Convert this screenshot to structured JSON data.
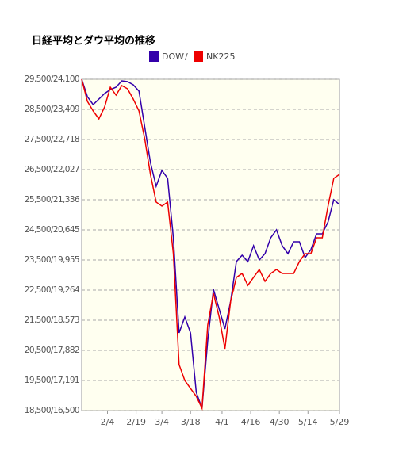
{
  "chart_data": {
    "type": "line",
    "title": "日経平均とダウ平均の推移",
    "legend_separator": "/",
    "x": [
      0,
      2,
      4,
      6,
      8,
      10,
      12,
      14,
      16,
      18,
      20,
      22,
      24,
      26,
      28,
      30,
      32,
      34,
      36,
      38,
      40,
      42,
      44,
      46,
      48,
      50,
      52,
      54,
      56,
      58,
      60,
      62,
      64,
      66,
      68,
      70,
      72,
      74,
      76,
      78,
      80,
      82,
      84,
      86,
      88,
      90
    ],
    "xlim": [
      0,
      90
    ],
    "xticks": [
      {
        "value": 9,
        "label": "2/4"
      },
      {
        "value": 19,
        "label": "2/19"
      },
      {
        "value": 28,
        "label": "3/4"
      },
      {
        "value": 38,
        "label": "3/18"
      },
      {
        "value": 49,
        "label": "4/1"
      },
      {
        "value": 59,
        "label": "4/16"
      },
      {
        "value": 69,
        "label": "4/30"
      },
      {
        "value": 79,
        "label": "5/14"
      },
      {
        "value": 90,
        "label": "5/29"
      }
    ],
    "ylim": [
      18500,
      29500
    ],
    "yticks": [
      {
        "value": 29500,
        "label": "29,500/24,100"
      },
      {
        "value": 28500,
        "label": "28,500/23,409"
      },
      {
        "value": 27500,
        "label": "27,500/22,718"
      },
      {
        "value": 26500,
        "label": "26,500/22,027"
      },
      {
        "value": 25500,
        "label": "25,500/21,336"
      },
      {
        "value": 24500,
        "label": "24,500/20,645"
      },
      {
        "value": 23500,
        "label": "23,500/19,955"
      },
      {
        "value": 22500,
        "label": "22,500/19,264"
      },
      {
        "value": 21500,
        "label": "21,500/18,573"
      },
      {
        "value": 20500,
        "label": "20,500/17,882"
      },
      {
        "value": 19500,
        "label": "19,500/17,191"
      },
      {
        "value": 18500,
        "label": "18,500/16,500"
      }
    ],
    "y2lim": [
      16500,
      24100
    ],
    "grid": true,
    "series": [
      {
        "name": "DOW",
        "color": "#3300aa",
        "values": [
          29500,
          28921,
          28658,
          28842,
          29026,
          29158,
          29237,
          29447,
          29421,
          29316,
          29105,
          27921,
          26737,
          25947,
          26474,
          26211,
          24237,
          21079,
          21605,
          21079,
          19105,
          18579,
          20816,
          22526,
          21868,
          21211,
          22132,
          23447,
          23658,
          23447,
          23974,
          23500,
          23711,
          24237,
          24500,
          23974,
          23711,
          24105,
          24105,
          23579,
          23842,
          24368,
          24368,
          24763,
          25500,
          25342
        ]
      },
      {
        "name": "NK225",
        "color": "#ee0000",
        "axis": "y2",
        "values": [
          24100,
          23591,
          23373,
          23191,
          23464,
          23918,
          23736,
          23955,
          23882,
          23645,
          23373,
          22736,
          21918,
          21282,
          21191,
          21282,
          20100,
          17554,
          17191,
          17009,
          16827,
          16554,
          18463,
          19190,
          18645,
          17918,
          19009,
          19555,
          19645,
          19373,
          19555,
          19736,
          19464,
          19645,
          19736,
          19645,
          19645,
          19645,
          19918,
          20100,
          20100,
          20464,
          20464,
          21191,
          21827,
          21918
        ]
      }
    ]
  }
}
